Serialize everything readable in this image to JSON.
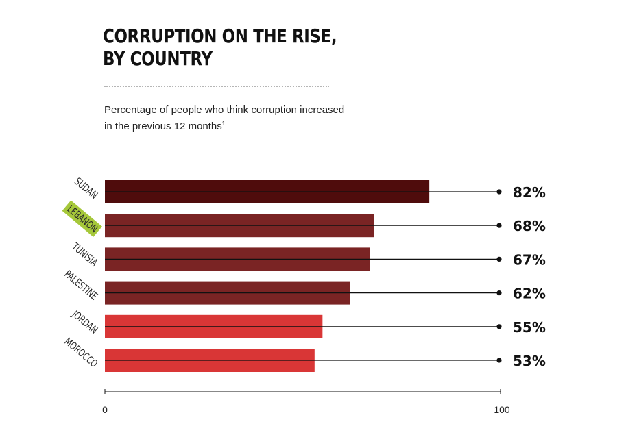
{
  "chart_data": {
    "type": "bar",
    "orientation": "horizontal",
    "title": "CORRUPTION ON THE RISE,\nBY COUNTRY",
    "subtitle": "Percentage of people who think corruption increased in the previous 12 months",
    "footnote_marker": "1",
    "categories": [
      "SUDAN",
      "LEBANON",
      "TUNISIA",
      "PALESTINE",
      "JORDAN",
      "MOROCCO"
    ],
    "values": [
      82,
      68,
      67,
      62,
      55,
      53
    ],
    "value_labels": [
      "82%",
      "68%",
      "67%",
      "62%",
      "55%",
      "53%"
    ],
    "colors": [
      "#4f0c0c",
      "#7a2424",
      "#7a2424",
      "#7a2424",
      "#d93636",
      "#d93636"
    ],
    "highlight": {
      "category": "LEBANON",
      "color": "#a6c83b"
    },
    "xlim": [
      0,
      100
    ],
    "x_ticks": [
      "0",
      "100"
    ],
    "reference_value": 100
  }
}
